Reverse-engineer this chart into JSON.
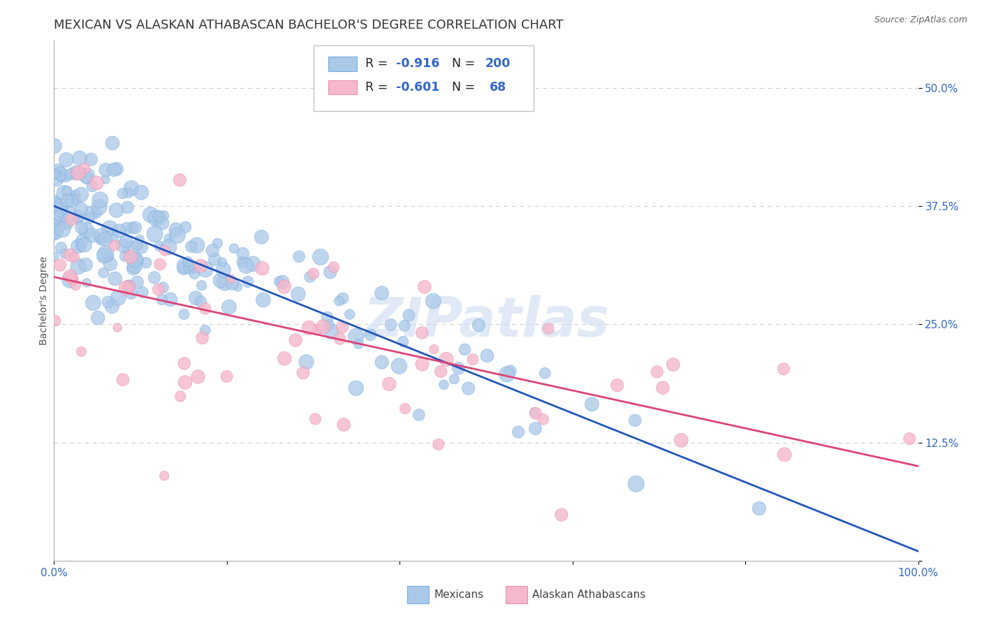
{
  "title": "MEXICAN VS ALASKAN ATHABASCAN BACHELOR'S DEGREE CORRELATION CHART",
  "source_text": "Source: ZipAtlas.com",
  "ylabel": "Bachelor's Degree",
  "xlim": [
    0.0,
    1.0
  ],
  "ylim": [
    0.0,
    0.55
  ],
  "yticks": [
    0.0,
    0.125,
    0.25,
    0.375,
    0.5
  ],
  "ytick_labels": [
    "",
    "12.5%",
    "25.0%",
    "37.5%",
    "50.0%"
  ],
  "blue_line_color": "#2255bb",
  "pink_line_color": "#dd4477",
  "blue_dot_color": "#aac8e8",
  "pink_dot_color": "#f5b8cc",
  "blue_dot_edge": "#7aabe0",
  "pink_dot_edge": "#e890b0",
  "watermark": "ZIPatlas",
  "background_color": "#ffffff",
  "grid_color": "#cccccc",
  "r_blue": -0.916,
  "n_blue": 200,
  "r_pink": -0.601,
  "n_pink": 68,
  "blue_intercept": 0.375,
  "blue_slope": -0.365,
  "pink_intercept": 0.3,
  "pink_slope": -0.2,
  "tick_color": "#3366cc",
  "tick_fontsize": 11,
  "label_fontsize": 10,
  "title_fontsize": 13
}
